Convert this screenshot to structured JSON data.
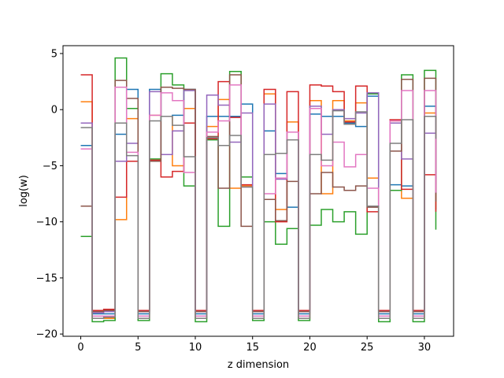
{
  "chart_data": {
    "type": "line",
    "drawstyle": "steps-post",
    "xlabel": "z dimension",
    "ylabel": "log(w)",
    "xlim": [
      -1.55,
      32.55
    ],
    "ylim": [
      -20.2,
      5.7
    ],
    "xticks": [
      0,
      5,
      10,
      15,
      20,
      25,
      30
    ],
    "yticks": [
      5,
      0,
      -5,
      -10,
      -15,
      -20
    ],
    "grid": false,
    "legend": "none",
    "x": [
      0,
      1,
      2,
      3,
      4,
      5,
      6,
      7,
      8,
      9,
      10,
      11,
      12,
      13,
      14,
      15,
      16,
      17,
      18,
      19,
      20,
      21,
      22,
      23,
      24,
      25,
      26,
      27,
      28,
      29,
      30,
      31
    ],
    "series": [
      {
        "color": "#1f77b4",
        "values": [
          -3.2,
          -18.2,
          -18.2,
          -2.2,
          1.8,
          -18.2,
          1.8,
          -0.6,
          -0.5,
          1.8,
          -18.2,
          -0.6,
          -0.6,
          -0.6,
          0.5,
          -18.2,
          -1.9,
          -5.7,
          -8.7,
          -18.2,
          -0.4,
          -0.6,
          -0.6,
          -1.2,
          -1.5,
          1.2,
          -18.2,
          -6.7,
          -6.8,
          -18.2,
          0.3,
          -6.7
        ]
      },
      {
        "color": "#ff7f0e",
        "values": [
          0.7,
          -18.6,
          -18.6,
          -9.8,
          -0.8,
          -18.6,
          -0.5,
          -0.6,
          -5.0,
          0.1,
          -18.6,
          -1.5,
          0.9,
          -7.0,
          -6.8,
          -18.6,
          1.4,
          -8.9,
          -1.1,
          -18.6,
          0.8,
          -7.5,
          0.8,
          -1.0,
          0.6,
          -6.1,
          -18.6,
          -1.0,
          -7.9,
          -18.6,
          -0.3,
          -8.9
        ]
      },
      {
        "color": "#2ca02c",
        "values": [
          -11.3,
          -18.9,
          -18.8,
          4.6,
          0.1,
          -18.8,
          -4.4,
          3.2,
          2.2,
          -6.8,
          -18.9,
          -2.7,
          -10.4,
          3.4,
          -6.0,
          -18.8,
          -10.0,
          -12.0,
          -10.6,
          -18.8,
          -10.3,
          -8.9,
          -10.0,
          -9.1,
          -11.1,
          1.4,
          -18.9,
          -7.2,
          3.1,
          -18.9,
          3.5,
          -10.7
        ]
      },
      {
        "color": "#d62728",
        "values": [
          3.1,
          -17.9,
          -17.8,
          -7.8,
          -4.6,
          -17.9,
          -4.5,
          -6.0,
          -5.5,
          -1.2,
          -17.9,
          -2.6,
          2.5,
          -0.7,
          -6.7,
          -17.9,
          1.8,
          -10.0,
          1.6,
          -17.9,
          2.2,
          2.1,
          1.6,
          -1.1,
          2.1,
          -9.1,
          -17.9,
          -0.9,
          -7.1,
          -17.9,
          -5.8,
          -9.1
        ]
      },
      {
        "color": "#9467bd",
        "values": [
          -1.2,
          -18.1,
          -18.0,
          -4.6,
          -3.0,
          -18.0,
          1.6,
          -4.0,
          -1.9,
          1.7,
          -18.0,
          1.3,
          0.4,
          -2.9,
          -0.3,
          -18.0,
          0.5,
          -6.2,
          -2.0,
          -18.0,
          0.3,
          -2.2,
          0.0,
          -0.8,
          -0.3,
          1.5,
          -18.0,
          -1.2,
          -4.4,
          -18.0,
          -2.1,
          -7.5
        ]
      },
      {
        "color": "#8c564b",
        "values": [
          -8.6,
          -18.0,
          -17.9,
          2.6,
          1.0,
          -18.0,
          -4.6,
          2.0,
          1.9,
          1.8,
          -18.0,
          -2.4,
          -7.0,
          3.1,
          -10.4,
          -18.0,
          -8.0,
          -9.9,
          -6.4,
          -18.0,
          -7.5,
          -5.6,
          -6.9,
          -7.2,
          -6.8,
          -8.7,
          -18.0,
          -3.7,
          2.7,
          -18.0,
          2.8,
          -8.2
        ]
      },
      {
        "color": "#e377c2",
        "values": [
          -3.5,
          -18.4,
          -18.4,
          2.0,
          -3.8,
          -18.4,
          -0.5,
          1.5,
          0.8,
          -5.6,
          -18.4,
          -2.0,
          -1.0,
          2.2,
          -6.9,
          -18.4,
          -7.5,
          -6.1,
          -2.0,
          -18.4,
          0.1,
          -5.0,
          -2.9,
          -5.1,
          -4.0,
          -7.0,
          -18.4,
          -1.0,
          1.7,
          -18.4,
          1.7,
          -7.4
        ]
      },
      {
        "color": "#7f7f7f",
        "values": [
          -1.6,
          -18.6,
          -18.5,
          -1.2,
          -4.1,
          -18.6,
          -1.0,
          -0.6,
          -1.4,
          -4.2,
          -18.6,
          -2.5,
          -3.2,
          -2.3,
          -6.9,
          -18.6,
          -4.0,
          -3.9,
          -2.7,
          -18.6,
          -4.0,
          -4.5,
          -0.1,
          -1.3,
          -0.2,
          -8.6,
          -18.6,
          -3.0,
          -0.9,
          -18.6,
          -0.6,
          -2.6
        ]
      }
    ]
  }
}
